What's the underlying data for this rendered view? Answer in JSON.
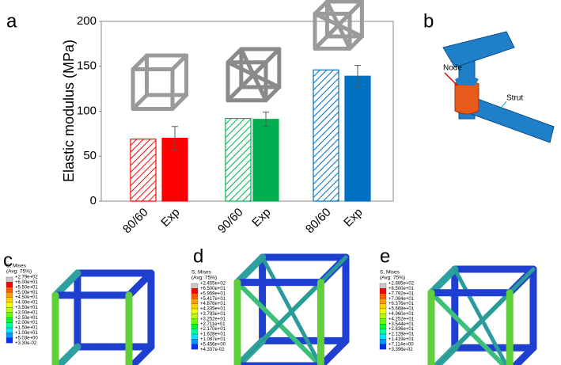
{
  "chart_data": {
    "type": "bar",
    "y_label": "Elastic modulus (MPa)",
    "categories": [
      "80/60",
      "Exp",
      "90/60",
      "Exp",
      "80/60",
      "Exp"
    ],
    "values": [
      69,
      70,
      92,
      91,
      146,
      139
    ],
    "errors": [
      null,
      13,
      null,
      8,
      null,
      12
    ],
    "colors": [
      "#ff0000",
      "#ff0000",
      "#00b050",
      "#00b050",
      "#0070c0",
      "#0070c0"
    ],
    "hatched": [
      true,
      false,
      true,
      false,
      true,
      false
    ],
    "ylim": [
      0,
      200
    ],
    "yticks": [
      0,
      50,
      100,
      150,
      200
    ]
  },
  "panel_labels": [
    "a",
    "b",
    "c",
    "d",
    "e"
  ],
  "panel_b": {
    "node": "Node",
    "strut": "Strut"
  },
  "contour_panels": [
    {
      "title": "S, Mises",
      "subtitle": "(Avg: 75%)",
      "levels": [
        "+2.79e+02",
        "+6.00e+01",
        "+5.50e+01",
        "+5.00e+01",
        "+4.50e+01",
        "+4.00e+01",
        "+3.50e+01",
        "+3.00e+01",
        "+2.50e+01",
        "+2.00e+01",
        "+1.50e+01",
        "+1.00e+01",
        "+5.03e+00",
        "+3.30e-02"
      ]
    },
    {
      "title": "S, Mises",
      "subtitle": "(Avg: 75%)",
      "levels": [
        "+2.455e+02",
        "+6.500e+01",
        "+5.959e+01",
        "+5.417e+01",
        "+4.876e+01",
        "+4.335e+01",
        "+3.793e+01",
        "+3.252e+01",
        "+2.711e+01",
        "+2.170e+01",
        "+1.628e+01",
        "+1.087e+01",
        "+5.456e+00",
        "+4.337e-02"
      ]
    },
    {
      "title": "S, Mises",
      "subtitle": "(Avg: 75%)",
      "levels": [
        "+2.885e+02",
        "+8.500e+01",
        "+7.792e+01",
        "+7.084e+01",
        "+6.376e+01",
        "+5.668e+01",
        "+4.960e+01",
        "+4.252e+01",
        "+3.544e+01",
        "+2.836e+01",
        "+2.128e+01",
        "+1.419e+01",
        "+7.114e+00",
        "+3.396e-02"
      ]
    }
  ]
}
